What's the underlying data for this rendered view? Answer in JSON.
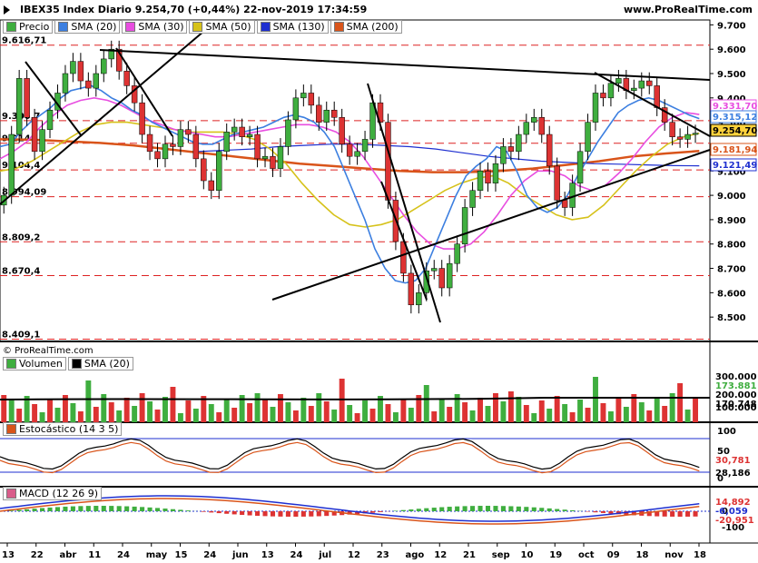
{
  "header": {
    "title": "IBEX35 Index Diario 9.254,70 (+0,44%) 22-nov-2019 17:34:59",
    "site": "www.ProRealTime.com",
    "copyright": "© ProRealTime.com"
  },
  "price_legend": [
    {
      "label": "Precio",
      "color": "#3fae3f"
    },
    {
      "label": "SMA (20)",
      "color": "#3c7fe0"
    },
    {
      "label": "SMA (30)",
      "color": "#e84ee0"
    },
    {
      "label": "SMA (50)",
      "color": "#d6c21a"
    },
    {
      "label": "SMA (130)",
      "color": "#1e2fd0"
    },
    {
      "label": "SMA (200)",
      "color": "#d9541a"
    }
  ],
  "volume_legend": [
    {
      "label": "Volumen",
      "color": "#3fae3f"
    },
    {
      "label": "SMA (20)",
      "color": "#000000"
    }
  ],
  "stoch_legend": [
    {
      "label": "Estocástico (14 3 5)",
      "color": "#d9541a"
    }
  ],
  "macd_legend": [
    {
      "label": "MACD (12 26 9)",
      "color": "#d95c8a"
    }
  ],
  "chart_data": {
    "type": "candlestick",
    "title": "IBEX35 Index Diario",
    "x_ticks": [
      "13",
      "22",
      "abr",
      "11",
      "24",
      "may",
      "15",
      "24",
      "jun",
      "13",
      "24",
      "jul",
      "12",
      "23",
      "ago",
      "12",
      "21",
      "sep",
      "10",
      "19",
      "oct",
      "09",
      "18",
      "nov",
      "18"
    ],
    "price_axis": {
      "ticks": [
        8500,
        8600,
        8700,
        8800,
        8900,
        9000,
        9100,
        9200,
        9300,
        9400,
        9500,
        9600,
        9700
      ],
      "tick_labels": [
        "8.500",
        "8.600",
        "8.700",
        "8.800",
        "8.900",
        "9.000",
        "9.100",
        "9.200",
        "9.300",
        "9.400",
        "9.500",
        "9.600",
        "9.700"
      ],
      "ylim": [
        8409,
        9720
      ]
    },
    "price_levels": [
      {
        "label": "9.616,71",
        "value": 9616.71
      },
      {
        "label": "9.306,7",
        "value": 9306.7
      },
      {
        "label": "9.214",
        "value": 9214
      },
      {
        "label": "9.104,4",
        "value": 9104.4
      },
      {
        "label": "8.994,09",
        "value": 8994.09
      },
      {
        "label": "8.809,2",
        "value": 8809.2
      },
      {
        "label": "8.670,4",
        "value": 8670.4
      },
      {
        "label": "8.409,1",
        "value": 8409.1
      }
    ],
    "last_values": [
      {
        "label": "9.331,70",
        "color": "#e84ee0"
      },
      {
        "label": "9.315,12",
        "color": "#3c7fe0"
      },
      {
        "label": "9.254,70",
        "color": "#000000",
        "fill": "#ffd23c"
      },
      {
        "label": "9.181,94",
        "color": "#d9541a"
      },
      {
        "label": "9.121,49",
        "color": "#1e2fd0"
      }
    ],
    "close": [
      9000,
      9250,
      9480,
      9320,
      9180,
      9270,
      9350,
      9420,
      9500,
      9550,
      9470,
      9440,
      9500,
      9560,
      9600,
      9510,
      9450,
      9380,
      9250,
      9180,
      9150,
      9210,
      9200,
      9270,
      9250,
      9150,
      9060,
      9020,
      9180,
      9260,
      9280,
      9240,
      9250,
      9150,
      9160,
      9110,
      9200,
      9310,
      9400,
      9420,
      9370,
      9300,
      9350,
      9320,
      9210,
      9160,
      9180,
      9230,
      9380,
      9300,
      8980,
      8810,
      8680,
      8550,
      8600,
      8690,
      8700,
      8620,
      8720,
      8800,
      8950,
      9020,
      9100,
      9050,
      9130,
      9200,
      9180,
      9250,
      9300,
      9320,
      9250,
      9120,
      8980,
      8950,
      9050,
      9180,
      9300,
      9420,
      9400,
      9460,
      9480,
      9430,
      9440,
      9470,
      9450,
      9360,
      9300,
      9240,
      9230,
      9250,
      9255
    ],
    "sma20": [
      9200,
      9210,
      9260,
      9300,
      9330,
      9360,
      9400,
      9430,
      9440,
      9450,
      9430,
      9400,
      9380,
      9350,
      9330,
      9300,
      9280,
      9260,
      9240,
      9220,
      9210,
      9210,
      9230,
      9250,
      9260,
      9270,
      9280,
      9300,
      9320,
      9330,
      9320,
      9300,
      9260,
      9200,
      9100,
      9000,
      8900,
      8780,
      8700,
      8650,
      8640,
      8650,
      8700,
      8800,
      8900,
      9000,
      9080,
      9120,
      9150,
      9200,
      9180,
      9100,
      9000,
      8950,
      8930,
      8950,
      9000,
      9080,
      9150,
      9220,
      9280,
      9340,
      9370,
      9390,
      9400,
      9390,
      9370,
      9350,
      9330,
      9315
    ],
    "sma30": [
      9150,
      9180,
      9220,
      9280,
      9330,
      9370,
      9390,
      9400,
      9390,
      9370,
      9340,
      9310,
      9290,
      9270,
      9260,
      9250,
      9240,
      9240,
      9250,
      9260,
      9270,
      9280,
      9290,
      9290,
      9280,
      9260,
      9220,
      9160,
      9080,
      9000,
      8920,
      8850,
      8800,
      8780,
      8780,
      8800,
      8850,
      8920,
      9000,
      9060,
      9100,
      9100,
      9080,
      9040,
      9020,
      9040,
      9090,
      9150,
      9220,
      9280,
      9320,
      9340,
      9332
    ],
    "sma50": [
      9100,
      9110,
      9140,
      9180,
      9220,
      9260,
      9290,
      9300,
      9300,
      9290,
      9280,
      9270,
      9260,
      9260,
      9260,
      9250,
      9230,
      9190,
      9130,
      9050,
      8980,
      8920,
      8880,
      8870,
      8880,
      8900,
      8940,
      8980,
      9020,
      9050,
      9070,
      9080,
      9050,
      9000,
      8960,
      8920,
      8900,
      8910,
      8960,
      9030,
      9100,
      9160,
      9210,
      9240,
      9255
    ],
    "sma130": [
      9180,
      9185,
      9190,
      9200,
      9205,
      9210,
      9210,
      9205,
      9200,
      9190,
      9175,
      9160,
      9150,
      9140,
      9135,
      9130,
      9128,
      9125,
      9122,
      9121
    ],
    "sma200": [
      9230,
      9228,
      9222,
      9215,
      9205,
      9190,
      9175,
      9160,
      9145,
      9130,
      9120,
      9110,
      9100,
      9095,
      9095,
      9100,
      9110,
      9125,
      9140,
      9160,
      9172,
      9182
    ],
    "volume": {
      "axis_ticks": [
        "300.000",
        "200.000",
        "100.000"
      ],
      "sma_label": "170.748",
      "last_label": "173.881"
    },
    "stochastic": {
      "axis_ticks": [
        "100",
        "50",
        "0"
      ],
      "last_labels": [
        "30,781",
        "28,186"
      ]
    },
    "macd": {
      "axis_ticks": [
        "0",
        "-100"
      ],
      "last_labels": [
        "14,892",
        "-6,059",
        "-20,951"
      ]
    }
  }
}
